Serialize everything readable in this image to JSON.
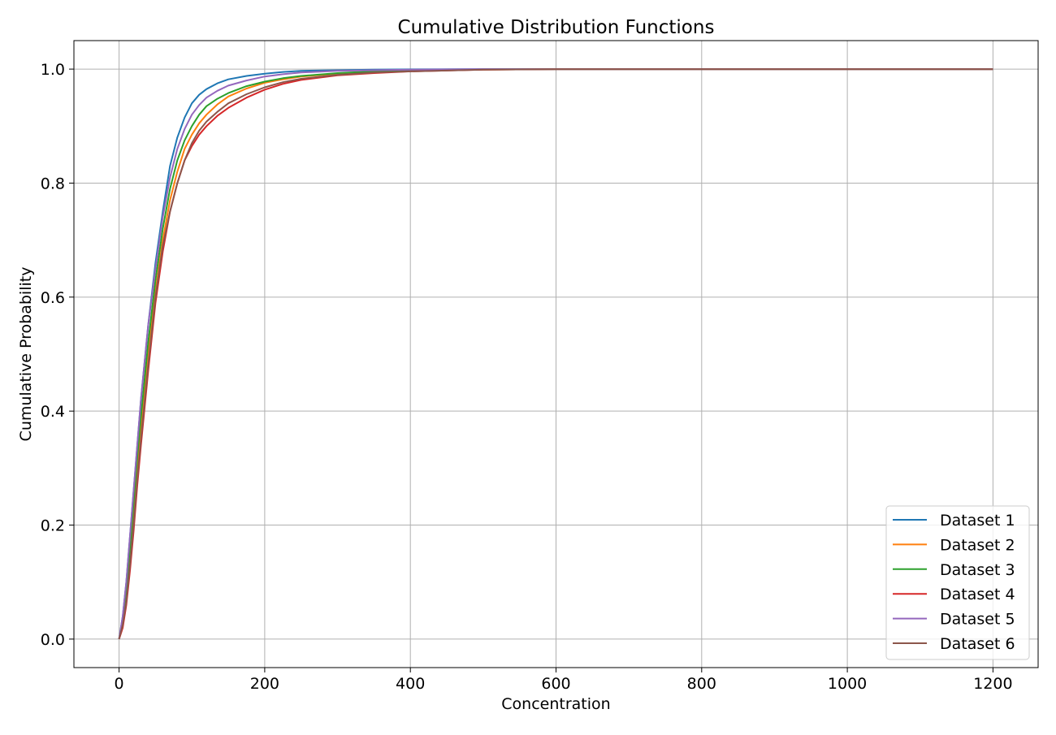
{
  "chart_data": {
    "type": "line",
    "title": "Cumulative Distribution Functions",
    "xlabel": "Concentration",
    "ylabel": "Cumulative Probability",
    "xlim": [
      -62,
      1262
    ],
    "ylim": [
      -0.05,
      1.05
    ],
    "xticks": [
      0,
      200,
      400,
      600,
      800,
      1000,
      1200
    ],
    "xtick_labels": [
      "0",
      "200",
      "400",
      "600",
      "800",
      "1000",
      "1200"
    ],
    "yticks": [
      0.0,
      0.2,
      0.4,
      0.6,
      0.8,
      1.0
    ],
    "ytick_labels": [
      "0.0",
      "0.2",
      "0.4",
      "0.6",
      "0.8",
      "1.0"
    ],
    "grid": true,
    "legend_position": "bottom-right",
    "series": [
      {
        "name": "Dataset 1",
        "color": "#1f77b4",
        "x": [
          0,
          5,
          10,
          15,
          20,
          25,
          30,
          40,
          50,
          60,
          70,
          80,
          90,
          100,
          110,
          120,
          135,
          150,
          175,
          200,
          225,
          250,
          300,
          350,
          400,
          500,
          600,
          800,
          1000,
          1200
        ],
        "y": [
          0,
          0.04,
          0.1,
          0.18,
          0.26,
          0.34,
          0.42,
          0.55,
          0.66,
          0.75,
          0.83,
          0.88,
          0.915,
          0.94,
          0.955,
          0.965,
          0.975,
          0.982,
          0.988,
          0.992,
          0.995,
          0.997,
          0.998,
          0.999,
          0.9995,
          1,
          1,
          1,
          1,
          1
        ]
      },
      {
        "name": "Dataset 2",
        "color": "#ff7f0e",
        "x": [
          0,
          5,
          10,
          15,
          20,
          25,
          30,
          40,
          50,
          60,
          70,
          80,
          90,
          100,
          110,
          120,
          135,
          150,
          175,
          200,
          225,
          250,
          300,
          350,
          400,
          500,
          600,
          800,
          1000,
          1200
        ],
        "y": [
          0,
          0.03,
          0.08,
          0.15,
          0.22,
          0.3,
          0.37,
          0.5,
          0.61,
          0.7,
          0.77,
          0.82,
          0.86,
          0.885,
          0.905,
          0.92,
          0.938,
          0.952,
          0.966,
          0.976,
          0.982,
          0.987,
          0.992,
          0.995,
          0.997,
          0.999,
          1,
          1,
          1,
          1
        ]
      },
      {
        "name": "Dataset 3",
        "color": "#2ca02c",
        "x": [
          0,
          5,
          10,
          15,
          20,
          25,
          30,
          40,
          50,
          60,
          70,
          80,
          90,
          100,
          110,
          120,
          135,
          150,
          175,
          200,
          225,
          250,
          300,
          350,
          400,
          500,
          600,
          800,
          1000,
          1200
        ],
        "y": [
          0,
          0.035,
          0.09,
          0.16,
          0.24,
          0.32,
          0.39,
          0.52,
          0.63,
          0.72,
          0.79,
          0.84,
          0.875,
          0.9,
          0.92,
          0.935,
          0.948,
          0.958,
          0.97,
          0.978,
          0.984,
          0.988,
          0.993,
          0.996,
          0.998,
          0.9995,
          1,
          1,
          1,
          1
        ]
      },
      {
        "name": "Dataset 4",
        "color": "#d62728",
        "x": [
          0,
          5,
          10,
          15,
          20,
          25,
          30,
          40,
          50,
          60,
          70,
          80,
          90,
          100,
          110,
          120,
          135,
          150,
          175,
          200,
          225,
          250,
          300,
          350,
          400,
          500,
          600,
          800,
          1000,
          1200
        ],
        "y": [
          0,
          0.02,
          0.06,
          0.12,
          0.19,
          0.27,
          0.34,
          0.47,
          0.59,
          0.68,
          0.75,
          0.8,
          0.84,
          0.865,
          0.885,
          0.9,
          0.918,
          0.932,
          0.95,
          0.964,
          0.974,
          0.981,
          0.989,
          0.993,
          0.996,
          0.999,
          1,
          1,
          1,
          1
        ]
      },
      {
        "name": "Dataset 5",
        "color": "#9467bd",
        "x": [
          0,
          5,
          10,
          15,
          20,
          25,
          30,
          40,
          50,
          60,
          70,
          80,
          90,
          100,
          110,
          120,
          135,
          150,
          175,
          200,
          225,
          250,
          300,
          350,
          400,
          500,
          600,
          800,
          1000,
          1200
        ],
        "y": [
          0,
          0.04,
          0.1,
          0.18,
          0.26,
          0.34,
          0.42,
          0.55,
          0.65,
          0.74,
          0.81,
          0.86,
          0.895,
          0.92,
          0.937,
          0.95,
          0.962,
          0.971,
          0.98,
          0.987,
          0.991,
          0.994,
          0.997,
          0.998,
          0.999,
          1,
          1,
          1,
          1,
          1
        ]
      },
      {
        "name": "Dataset 6",
        "color": "#8c564b",
        "x": [
          0,
          5,
          10,
          15,
          20,
          25,
          30,
          40,
          50,
          60,
          70,
          80,
          90,
          100,
          110,
          120,
          135,
          150,
          175,
          200,
          225,
          250,
          300,
          350,
          400,
          500,
          600,
          800,
          1000,
          1200
        ],
        "y": [
          0,
          0.025,
          0.065,
          0.13,
          0.2,
          0.28,
          0.35,
          0.48,
          0.6,
          0.69,
          0.75,
          0.8,
          0.84,
          0.87,
          0.892,
          0.908,
          0.925,
          0.94,
          0.956,
          0.968,
          0.977,
          0.983,
          0.99,
          0.994,
          0.996,
          0.999,
          1,
          1,
          1,
          1
        ]
      }
    ]
  }
}
